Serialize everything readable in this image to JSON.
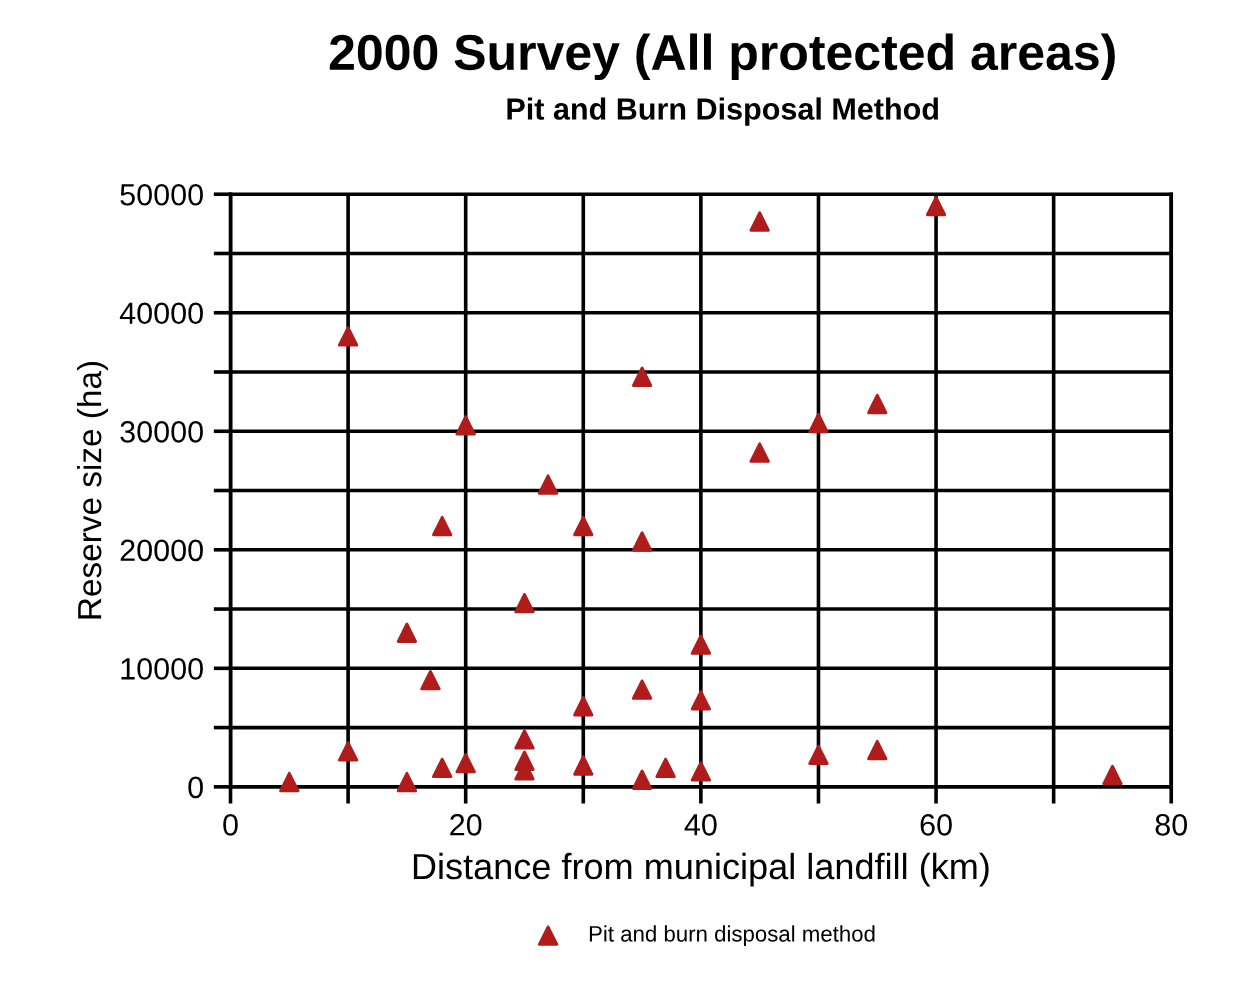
{
  "chart_data": {
    "type": "scatter",
    "title": "2000 Survey (All protected areas)",
    "subtitle": "Pit and Burn Disposal Method",
    "xlabel": "Distance from municipal landfill (km)",
    "ylabel": "Reserve size (ha)",
    "xlim": [
      0,
      80
    ],
    "xticks": [
      0,
      {
        "value": 10,
        "label": null
      },
      20,
      {
        "value": 30,
        "label": null
      },
      40,
      {
        "value": 50,
        "label": null
      },
      60,
      {
        "value": 70,
        "label": null
      },
      80
    ],
    "ylim": [
      0,
      50000
    ],
    "yticks": [
      0,
      {
        "value": 5000,
        "label": null
      },
      10000,
      {
        "value": 15000,
        "label": null
      },
      20000,
      {
        "value": 25000,
        "label": null
      },
      30000,
      {
        "value": 35000,
        "label": null
      },
      40000,
      {
        "value": 45000,
        "label": null
      },
      50000
    ],
    "grid": true,
    "legend": "bottom",
    "marker": "triangle",
    "series": [
      {
        "name": "Pit and burn disposal method",
        "color": "#b01c1c",
        "x": [
          5,
          10,
          15,
          15,
          17,
          18,
          18,
          20,
          25,
          25,
          25,
          25,
          27,
          30,
          30,
          30,
          35,
          35,
          35,
          37,
          40,
          40,
          40,
          50,
          55,
          75,
          10,
          20,
          35,
          45,
          60,
          55,
          50,
          45
        ],
        "values": [
          400,
          3000,
          400,
          13000,
          9000,
          1600,
          22000,
          2000,
          15500,
          4000,
          2200,
          1400,
          25500,
          22000,
          6800,
          1800,
          20700,
          8200,
          600,
          1600,
          12000,
          7300,
          1300,
          2700,
          3100,
          1000,
          38000,
          30500,
          34600,
          47700,
          49000,
          32300,
          30700,
          28200
        ]
      }
    ]
  }
}
